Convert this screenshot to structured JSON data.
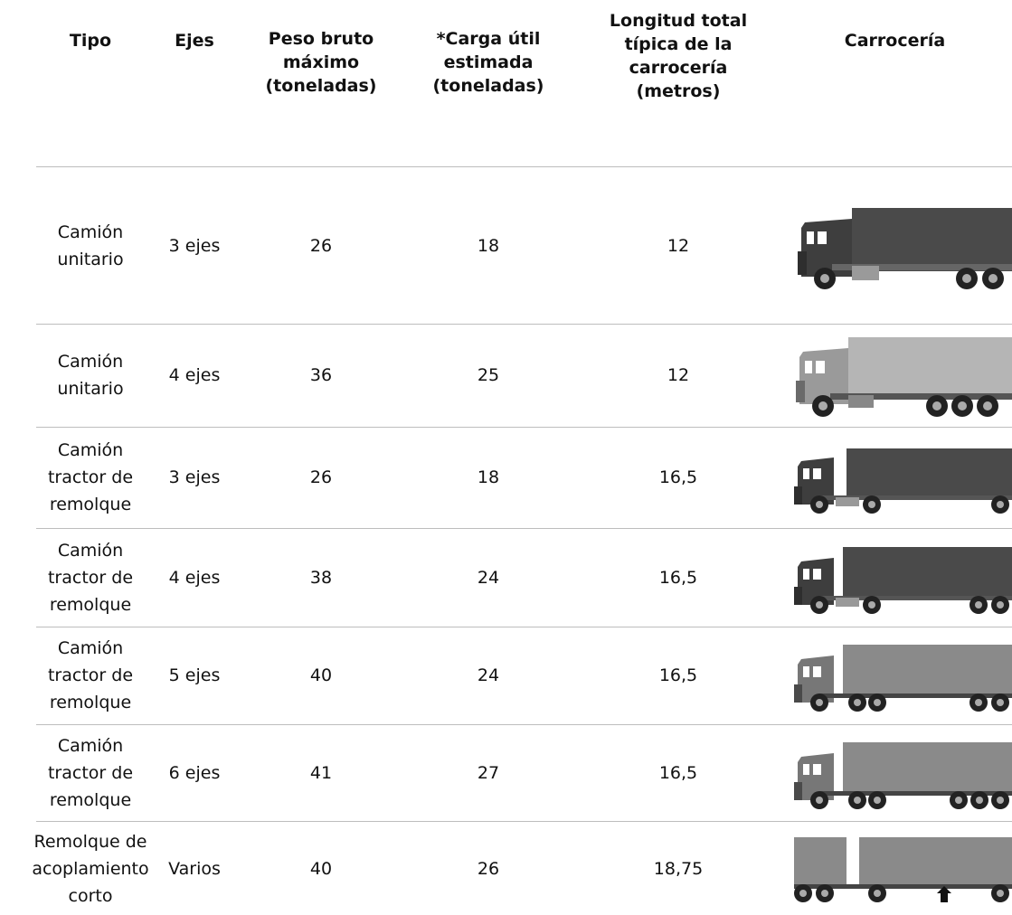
{
  "headers": {
    "tipo": "Tipo",
    "ejes": "Ejes",
    "peso": "Peso bruto\nmáximo\n(toneladas)",
    "carga": "*Carga útil\nestimada\n(toneladas)",
    "longitud": "Longitud total\ntípica de la\ncarrocería\n(metros)",
    "carroceria": "Carrocería"
  },
  "rows": [
    {
      "tipo": "Camión\nunitario",
      "ejes": "3 ejes",
      "peso": "26",
      "carga": "18",
      "longitud": "12",
      "icon": "rigid-truck-3-axle-icon"
    },
    {
      "tipo": "Camión\nunitario",
      "ejes": "4 ejes",
      "peso": "36",
      "carga": "25",
      "longitud": "12",
      "icon": "rigid-truck-4-axle-icon"
    },
    {
      "tipo": "Camión\ntractor de\nremolque",
      "ejes": "3 ejes",
      "peso": "26",
      "carga": "18",
      "longitud": "16,5",
      "icon": "tractor-trailer-3-axle-icon"
    },
    {
      "tipo": "Camión\ntractor de\nremolque",
      "ejes": "4 ejes",
      "peso": "38",
      "carga": "24",
      "longitud": "16,5",
      "icon": "tractor-trailer-4-axle-icon"
    },
    {
      "tipo": "Camión\ntractor de\nremolque",
      "ejes": "5 ejes",
      "peso": "40",
      "carga": "24",
      "longitud": "16,5",
      "icon": "tractor-trailer-5-axle-icon"
    },
    {
      "tipo": "Camión\ntractor de\nremolque",
      "ejes": "6 ejes",
      "peso": "41",
      "carga": "27",
      "longitud": "16,5",
      "icon": "tractor-trailer-6-axle-icon"
    },
    {
      "tipo": "Remolque de\nacoplamiento\ncorto",
      "ejes": "Varios",
      "peso": "40",
      "carga": "26",
      "longitud": "18,75",
      "icon": "close-coupled-trailer-icon"
    }
  ],
  "colors": {
    "body_dark": "#4a4a4a",
    "body_light": "#b5b5b5",
    "body_mid": "#8a8a8a",
    "separator": "#bdbdbd"
  }
}
